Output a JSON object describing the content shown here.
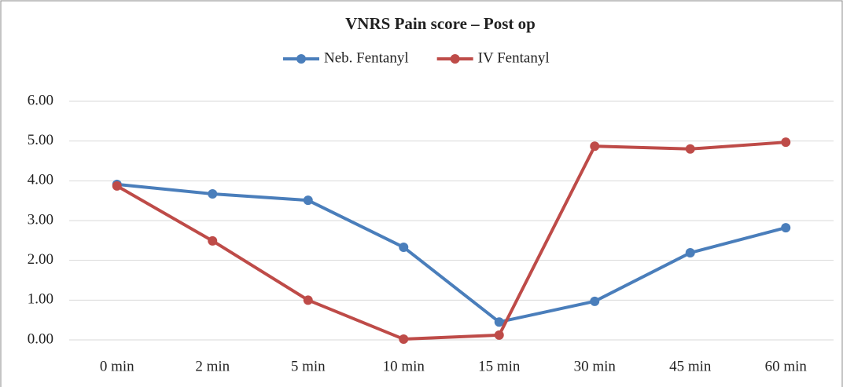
{
  "chart_data": {
    "type": "line",
    "title": "VNRS  Pain score  – Post op",
    "categories": [
      "0 min",
      "2 min",
      "5 min",
      "10 min",
      "15 min",
      "30 min",
      "45 min",
      "60 min"
    ],
    "series": [
      {
        "name": "Neb. Fentanyl",
        "color": "#4a7ebb",
        "values": [
          3.91,
          3.67,
          3.51,
          2.33,
          0.45,
          0.97,
          2.19,
          2.82
        ]
      },
      {
        "name": "IV Fentanyl",
        "color": "#be4b48",
        "values": [
          3.87,
          2.49,
          1.0,
          0.02,
          0.12,
          4.87,
          4.8,
          4.97
        ]
      }
    ],
    "ylim": [
      0,
      6
    ],
    "yticks": [
      {
        "value": 0,
        "label": "0.00"
      },
      {
        "value": 1,
        "label": "1.00"
      },
      {
        "value": 2,
        "label": "2.00"
      },
      {
        "value": 3,
        "label": "3.00"
      },
      {
        "value": 4,
        "label": "4.00"
      },
      {
        "value": 5,
        "label": "5.00"
      },
      {
        "value": 6,
        "label": "6.00"
      }
    ],
    "grid": true,
    "legend": "top"
  }
}
